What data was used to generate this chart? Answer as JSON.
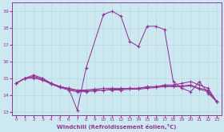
{
  "bg_color": "#cce8f0",
  "line_color": "#993399",
  "grid_color": "#b0d8d8",
  "xlabel": "Windchill (Refroidissement éolien,°C)",
  "xlim": [
    -0.5,
    23.5
  ],
  "ylim": [
    12.8,
    19.5
  ],
  "yticks": [
    13,
    14,
    15,
    16,
    17,
    18,
    19
  ],
  "xticks": [
    0,
    1,
    2,
    3,
    4,
    5,
    6,
    7,
    8,
    9,
    10,
    11,
    12,
    13,
    14,
    15,
    16,
    17,
    18,
    19,
    20,
    21,
    22,
    23
  ],
  "line1_x": [
    0,
    1,
    2,
    3,
    4,
    5,
    6,
    7,
    8,
    10,
    11,
    12,
    13,
    14,
    15,
    16,
    17,
    18,
    19,
    20,
    21,
    22,
    23
  ],
  "line1_y": [
    14.7,
    15.0,
    15.2,
    15.0,
    14.7,
    14.5,
    14.4,
    13.1,
    15.6,
    18.8,
    19.0,
    18.7,
    17.2,
    16.9,
    18.1,
    18.1,
    17.9,
    14.8,
    14.4,
    14.2,
    14.8,
    14.1,
    13.6
  ],
  "line2_x": [
    0,
    1,
    2,
    3,
    4,
    5,
    6,
    7,
    8,
    9,
    10,
    11,
    12,
    13,
    14,
    15,
    16,
    17,
    18,
    19,
    20,
    21,
    22,
    23
  ],
  "line2_y": [
    14.7,
    15.0,
    15.1,
    15.0,
    14.7,
    14.5,
    14.4,
    14.3,
    14.3,
    14.35,
    14.4,
    14.4,
    14.4,
    14.4,
    14.4,
    14.5,
    14.5,
    14.6,
    14.6,
    14.7,
    14.8,
    14.6,
    14.4,
    13.6
  ],
  "line3_x": [
    0,
    1,
    2,
    3,
    4,
    5,
    6,
    7,
    8,
    9,
    10,
    11,
    12,
    13,
    14,
    15,
    16,
    17,
    18,
    19,
    20,
    21,
    22,
    23
  ],
  "line3_y": [
    14.7,
    15.0,
    15.1,
    14.9,
    14.7,
    14.5,
    14.35,
    14.25,
    14.25,
    14.3,
    14.3,
    14.35,
    14.35,
    14.4,
    14.4,
    14.45,
    14.5,
    14.55,
    14.55,
    14.55,
    14.6,
    14.4,
    14.3,
    13.6
  ],
  "line4_x": [
    0,
    1,
    2,
    3,
    4,
    5,
    6,
    7,
    8,
    9,
    10,
    11,
    12,
    13,
    14,
    15,
    16,
    17,
    18,
    19,
    20,
    21,
    22,
    23
  ],
  "line4_y": [
    14.7,
    15.0,
    15.0,
    14.9,
    14.65,
    14.45,
    14.3,
    14.2,
    14.2,
    14.25,
    14.3,
    14.3,
    14.3,
    14.35,
    14.35,
    14.4,
    14.45,
    14.5,
    14.5,
    14.5,
    14.55,
    14.35,
    14.2,
    13.6
  ]
}
